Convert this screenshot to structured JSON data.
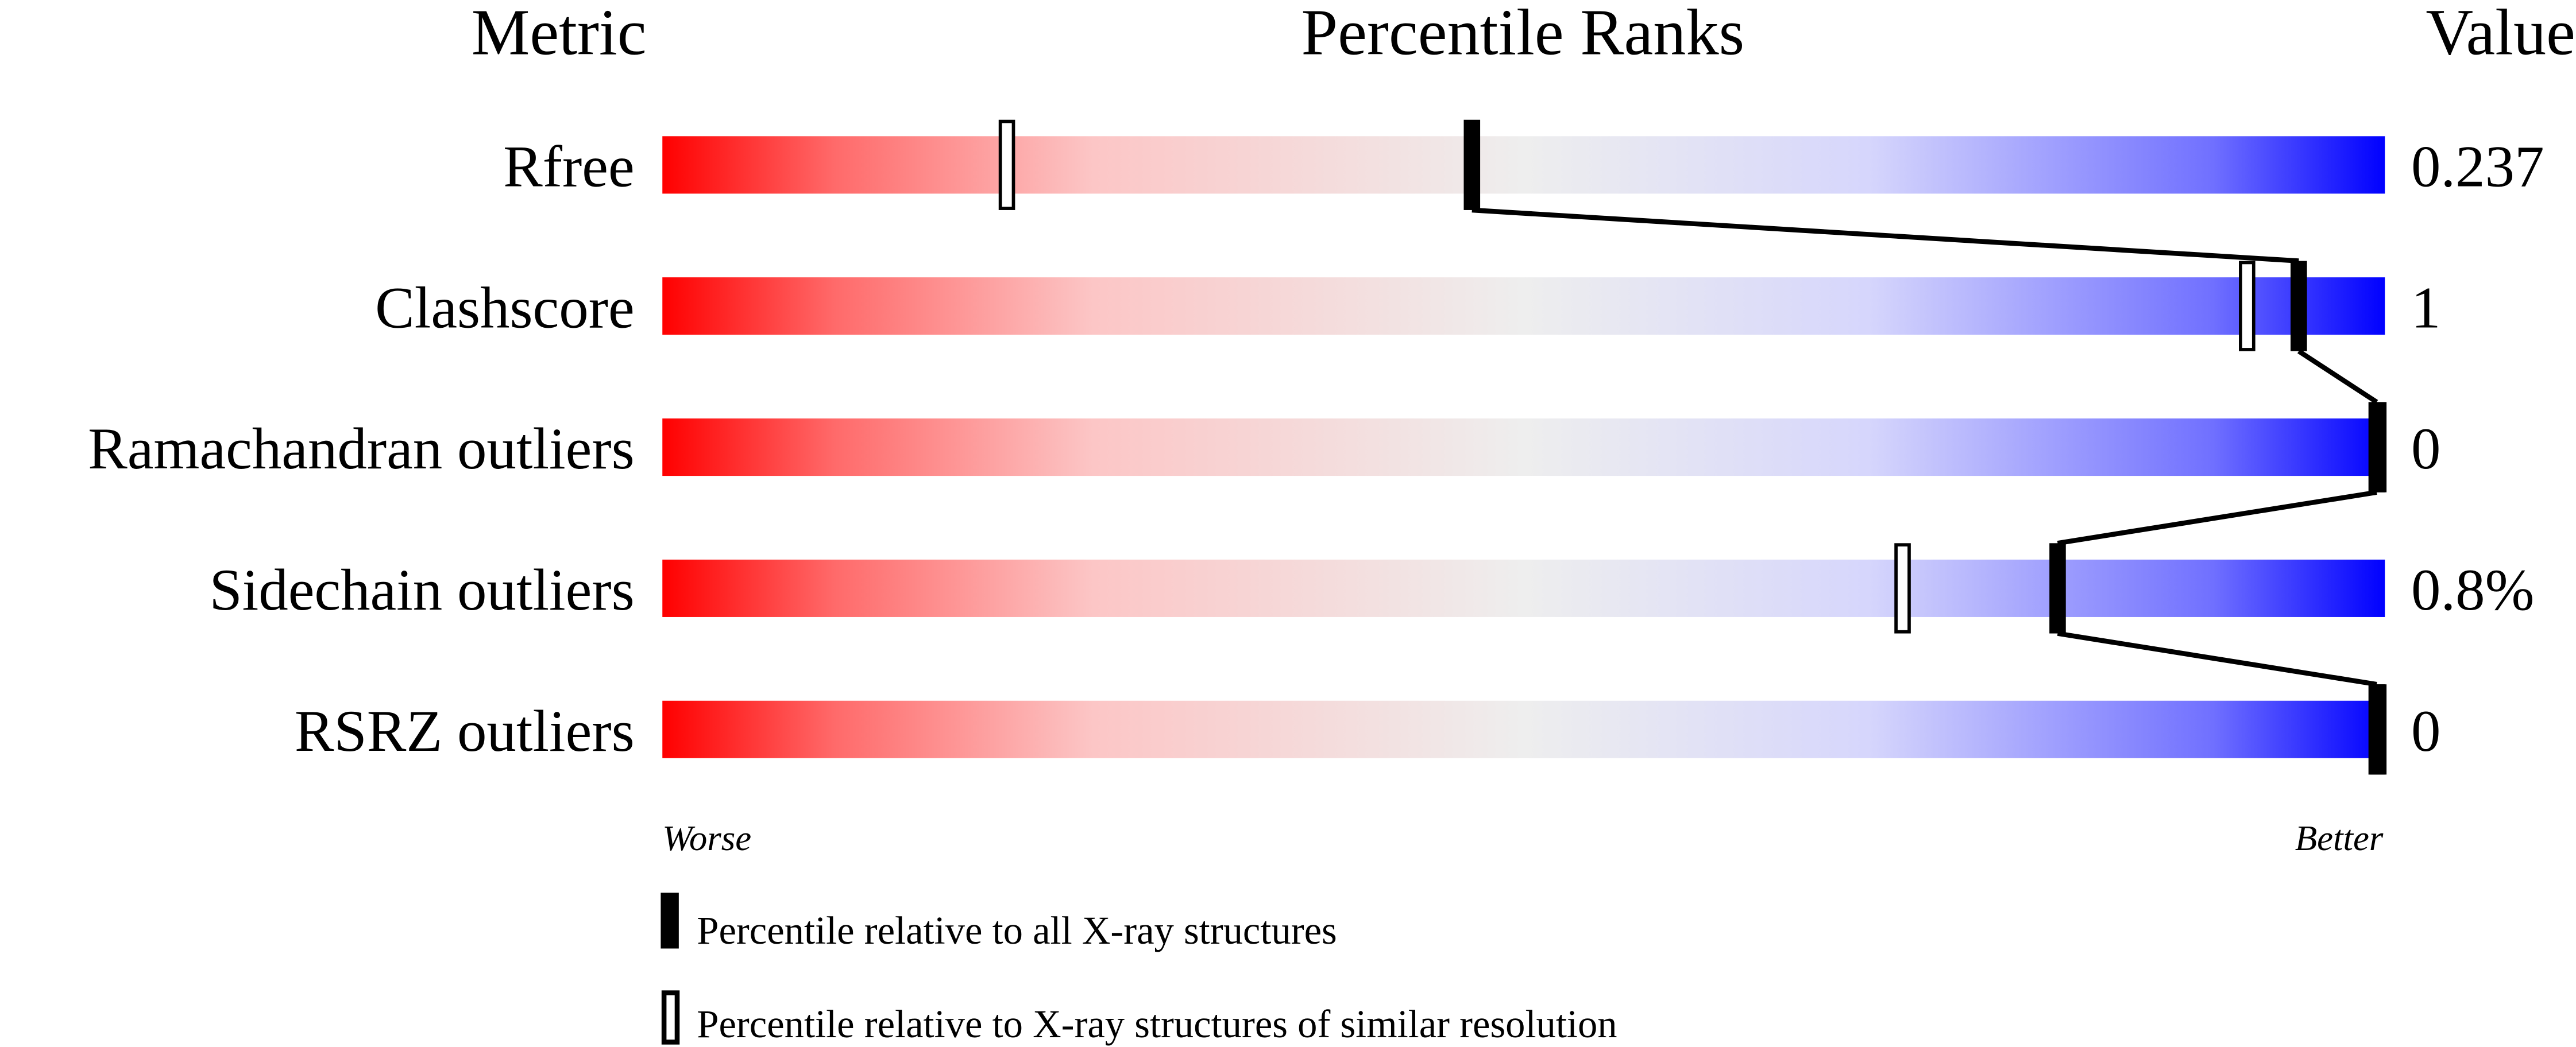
{
  "chart_data": {
    "type": "percentile-slider",
    "headers": {
      "metric": "Metric",
      "ranks": "Percentile Ranks",
      "value": "Value"
    },
    "xlim": [
      0,
      100
    ],
    "metrics": [
      {
        "name": "Rfree",
        "value": "0.237",
        "percentile_all": 47,
        "percentile_similar": 20
      },
      {
        "name": "Clashscore",
        "value": "1",
        "percentile_all": 95,
        "percentile_similar": 92
      },
      {
        "name": "Ramachandran outliers",
        "value": "0",
        "percentile_all": 100,
        "percentile_similar": 100
      },
      {
        "name": "Sidechain outliers",
        "value": "0.8%",
        "percentile_all": 81,
        "percentile_similar": 72
      },
      {
        "name": "RSRZ outliers",
        "value": "0",
        "percentile_all": 100,
        "percentile_similar": 100
      }
    ],
    "axis_labels": {
      "left": "Worse",
      "right": "Better"
    },
    "legend": {
      "all": "Percentile relative to all X-ray structures",
      "similar": "Percentile relative to X-ray structures of similar resolution"
    },
    "colors": {
      "worse": "#ff0000",
      "middle": "#eeeeee",
      "better": "#0000ff"
    }
  }
}
